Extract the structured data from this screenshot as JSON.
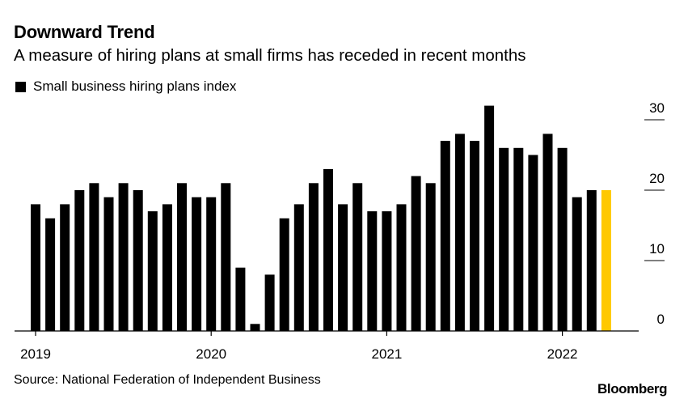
{
  "header": {
    "title": "Downward Trend",
    "subtitle": "A measure of hiring plans at small firms has receded in recent months"
  },
  "footer": {
    "source": "Source: National Federation of Independent Business",
    "logo": "Bloomberg"
  },
  "colors": {
    "bar": "#000000",
    "highlight": "#ffc800",
    "grid": "#000000"
  },
  "chart_data": {
    "type": "bar",
    "series": [
      {
        "name": "Small business hiring plans index",
        "x": [
          "2019-01",
          "2019-02",
          "2019-03",
          "2019-04",
          "2019-05",
          "2019-06",
          "2019-07",
          "2019-08",
          "2019-09",
          "2019-10",
          "2019-11",
          "2019-12",
          "2020-01",
          "2020-02",
          "2020-03",
          "2020-04",
          "2020-05",
          "2020-06",
          "2020-07",
          "2020-08",
          "2020-09",
          "2020-10",
          "2020-11",
          "2020-12",
          "2021-01",
          "2021-02",
          "2021-03",
          "2021-04",
          "2021-05",
          "2021-06",
          "2021-07",
          "2021-08",
          "2021-09",
          "2021-10",
          "2021-11",
          "2021-12",
          "2022-01",
          "2022-02",
          "2022-03",
          "2022-04"
        ],
        "values": [
          18,
          16,
          18,
          20,
          21,
          19,
          21,
          20,
          17,
          18,
          21,
          19,
          19,
          21,
          9,
          1,
          8,
          16,
          18,
          21,
          23,
          18,
          21,
          17,
          17,
          18,
          22,
          21,
          27,
          28,
          27,
          32,
          26,
          26,
          25,
          28,
          26,
          19,
          20,
          20
        ]
      }
    ],
    "highlight_index": 39,
    "x_tick_labels": [
      "2019",
      "2020",
      "2021",
      "2022"
    ],
    "y_ticks": [
      0,
      10,
      20,
      30
    ],
    "ylim": [
      0,
      32
    ],
    "y_axis_side": "right",
    "grid": false,
    "legend_position": "top-left"
  }
}
